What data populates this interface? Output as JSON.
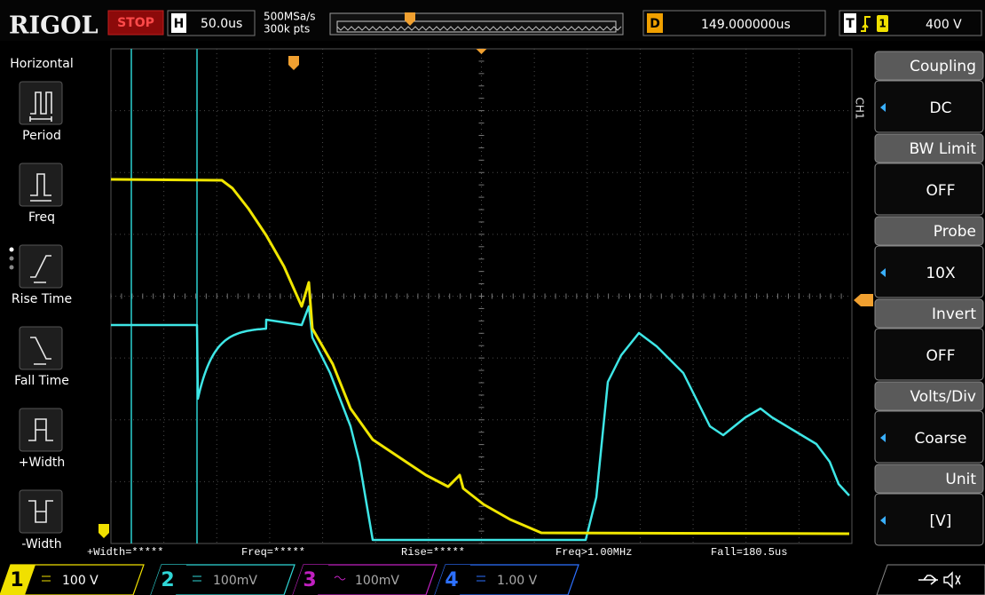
{
  "header": {
    "brand": "RIGOL",
    "status": "STOP",
    "timebase_label": "H",
    "timebase": "50.0us",
    "sample_rate": "500MSa/s",
    "memory_depth": "300k pts",
    "delay_label": "D",
    "delay": "149.000000us",
    "trigger_label": "T",
    "trigger_source": "1",
    "trigger_level": "400 V"
  },
  "left_menu": {
    "title": "Horizontal",
    "items": [
      "Period",
      "Freq",
      "Rise Time",
      "Fall Time",
      "+Width",
      "-Width"
    ]
  },
  "right_menu": {
    "channel": "CH1",
    "items": [
      {
        "label": "Coupling",
        "value": "DC"
      },
      {
        "label": "BW Limit",
        "value": "OFF"
      },
      {
        "label": "Probe",
        "value": "10X"
      },
      {
        "label": "Invert",
        "value": "OFF"
      },
      {
        "label": "Volts/Div",
        "value": "Coarse"
      },
      {
        "label": "Unit",
        "value": "[V]"
      }
    ]
  },
  "measurements": [
    "+Width=*****",
    "Freq=*****",
    "Rise=*****",
    "Freq>1.00MHz",
    "Fall=180.5us"
  ],
  "channels": [
    {
      "number": "1",
      "scale": "100 V"
    },
    {
      "number": "2",
      "scale": "100mV"
    },
    {
      "number": "3",
      "scale": "100mV"
    },
    {
      "number": "4",
      "scale": "1.00 V"
    }
  ]
}
